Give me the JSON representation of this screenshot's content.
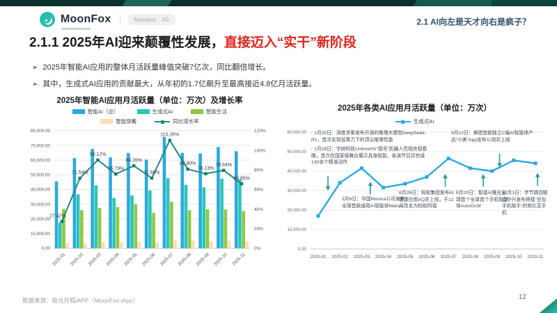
{
  "header": {
    "brand": "MoonFox",
    "ticker_badge": "Nasdaq : JG",
    "section_title": "2.1 AI向左是天才向右是疯子？"
  },
  "slide": {
    "title_black": "2.1.1 2025年AI迎来颠覆性发展，",
    "title_red": "直接迈入“实干”新阶段",
    "bullets": [
      "2025年智能AI应用的整体月活跃量峰值突破7亿次，同比翻倍增长。",
      "其中，生成式AI应用的贡献最大，从年初的1.7亿飙升至最高接近4.8亿月活跃量。"
    ]
  },
  "chart_data": [
    {
      "type": "bar",
      "title": "2025年智能AI应用月活跃量（单位：万次）及增长率",
      "categories": [
        "2025-01",
        "2025-02",
        "2025-03",
        "2025-04",
        "2025-05",
        "2025-06",
        "2025-07",
        "2025-08",
        "2025-09",
        "2025-10",
        "2025-11"
      ],
      "series": [
        {
          "name": "智能AI（总）",
          "kind": "bar",
          "color": "#2BA9E1",
          "values": [
            45500,
            61400,
            67700,
            61900,
            64900,
            60400,
            75800,
            64900,
            64600,
            68900,
            66100
          ]
        },
        {
          "name": "生成式AI",
          "kind": "bar",
          "color": "#2BC6B4",
          "values": [
            17400,
            36700,
            42900,
            34300,
            36000,
            39400,
            47700,
            43200,
            41500,
            47300,
            46800
          ]
        },
        {
          "name": "智能生活",
          "kind": "bar",
          "color": "#8FC742",
          "values": [
            26800,
            25900,
            27400,
            28100,
            30000,
            24200,
            31600,
            25900,
            26500,
            26400,
            25400
          ]
        },
        {
          "name": "智能穿戴",
          "kind": "bar",
          "color": "#FBDCB9",
          "values": [
            3600,
            3600,
            4300,
            4300,
            4300,
            4100,
            5300,
            5200,
            4800,
            5000,
            4600
          ]
        },
        {
          "name": "同比增长率",
          "kind": "line",
          "color": "#1E8C7D",
          "axis": "right",
          "values": [
            27.42,
            71.54,
            90.12,
            75.79,
            84.26,
            71.66,
            110.26,
            80.8,
            76.13,
            79.64,
            65.85
          ],
          "labels": [
            "27.42%",
            "71.54%",
            "90.12%",
            "75.79%",
            "84.26%",
            "71.66%",
            "110.26%",
            "80.80%",
            "76.13%",
            "79.64%",
            "65.85%"
          ]
        }
      ],
      "y_left": {
        "min": 0,
        "max": 80000,
        "step": 10000
      },
      "y_right": {
        "min": 0,
        "max": 120,
        "step": 20,
        "suffix": "%"
      },
      "grid": true,
      "legend_position": "top"
    },
    {
      "type": "line",
      "title": "2025年各类AI应用月活跃量（单位：万次）",
      "categories": [
        "2025-01",
        "2025-02",
        "2025-03",
        "2025-04",
        "2025-05",
        "2025-06",
        "2025-07",
        "2025-08",
        "2025-09",
        "2025-10",
        "2025-11"
      ],
      "series": [
        {
          "name": "生成式AI",
          "kind": "line",
          "color": "#2BA9E1",
          "values": [
            17000,
            34000,
            41500,
            31500,
            33500,
            37000,
            46500,
            41500,
            40000,
            45500,
            44000
          ]
        }
      ],
      "y": {
        "min": 0,
        "max": 60000,
        "step": 10000
      },
      "grid": true,
      "legend_position": "top",
      "annotations": [
        {
          "text": "1月20日：深度求索发布开源的推理大模型DeepSeek-R1，首次实现低算力下的顶尖推理性能",
          "bullet": true
        },
        {
          "text": "1月28日：宇树科技UnitreeH1“福号”机器人亮相央视春晚，首次在国家级舞台展示具身智能，表演节目并完成130余个精准动作",
          "bullet": true
        },
        {
          "text": "9月12日：美团首款独立C端AI智能体产品“小美”App宣布公测并上线",
          "bullet": false
        },
        {
          "text": "3月6日：中国Monica公司发布全球首款通用AI智能体Manus",
          "bullet": false
        },
        {
          "text": "6月26日：蚂蚁集团发布AI健康应用AQ并上线，于12月改名为蚂蚁阿福",
          "bullet": false
        },
        {
          "text": "8月20日：智谱AI推出全球首个全球首个手机智能体AutoGLM",
          "bullet": false
        },
        {
          "text": "12月1日：字节跳动联合中兴发布搭载“豆包手机助手”的努比亚手机",
          "bullet": false
        }
      ],
      "arrows": [
        {
          "month": 0.45,
          "dir": "down",
          "tip": 30000,
          "tail": 37500
        },
        {
          "month": 2.4,
          "dir": "up",
          "tip": 34500,
          "tail": 28000
        },
        {
          "month": 5.85,
          "dir": "up",
          "tip": 38500,
          "tail": 32000
        },
        {
          "month": 7.6,
          "dir": "up",
          "tip": 38500,
          "tail": 32000
        },
        {
          "month": 8.35,
          "dir": "down",
          "tip": 42000,
          "tail": 49000
        },
        {
          "month": 10.1,
          "dir": "up",
          "tip": 39000,
          "tail": 32500
        }
      ]
    }
  ],
  "footer": {
    "source": "数据来源：极光月狐iAPP（MoonFox iApp）",
    "page": "12"
  },
  "colors": {
    "title_red": "#E1251B",
    "arrow_green": "#2a9d8f",
    "logo_teal": "#2BBBAD"
  }
}
